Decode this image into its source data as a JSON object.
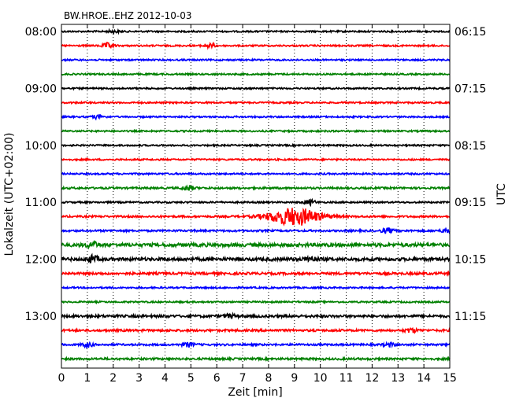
{
  "chart_data": {
    "type": "line",
    "title": "BW.HROE..EHZ 2012-10-03",
    "xlabel": "Zeit  [min]",
    "ylabel_left": "Lokalzeit (UTC+02:00)",
    "ylabel_right": "UTC",
    "xlim": [
      0,
      15
    ],
    "x_ticks": [
      "0",
      "1",
      "2",
      "3",
      "4",
      "5",
      "6",
      "7",
      "8",
      "9",
      "10",
      "11",
      "12",
      "13",
      "14",
      "15"
    ],
    "x_grid": "dotted",
    "left_ticks": [
      "08:00",
      "09:00",
      "10:00",
      "11:00",
      "12:00",
      "13:00"
    ],
    "right_ticks": [
      "06:15",
      "07:15",
      "08:15",
      "09:15",
      "10:15",
      "11:15"
    ],
    "trace_colors": [
      "#000000",
      "#ff0000",
      "#0000ff",
      "#008000"
    ],
    "traces_per_hour": 4,
    "trace_interval_min": 15,
    "series": [
      {
        "start_local": "08:00",
        "color": "#000000",
        "amplitude": 1.0,
        "events": [
          {
            "t": 2.0,
            "amp": 1.4
          }
        ]
      },
      {
        "start_local": "08:15",
        "color": "#ff0000",
        "amplitude": 1.0,
        "events": [
          {
            "t": 1.8,
            "amp": 3
          },
          {
            "t": 5.7,
            "amp": 2.5
          }
        ]
      },
      {
        "start_local": "08:30",
        "color": "#0000ff",
        "amplitude": 1.0,
        "events": []
      },
      {
        "start_local": "08:45",
        "color": "#008000",
        "amplitude": 1.0,
        "events": []
      },
      {
        "start_local": "09:00",
        "color": "#000000",
        "amplitude": 1.0,
        "events": []
      },
      {
        "start_local": "09:15",
        "color": "#ff0000",
        "amplitude": 1.0,
        "events": []
      },
      {
        "start_local": "09:30",
        "color": "#0000ff",
        "amplitude": 1.0,
        "events": [
          {
            "t": 1.4,
            "amp": 2
          }
        ]
      },
      {
        "start_local": "09:45",
        "color": "#008000",
        "amplitude": 1.0,
        "events": []
      },
      {
        "start_local": "10:00",
        "color": "#000000",
        "amplitude": 1.0,
        "events": []
      },
      {
        "start_local": "10:15",
        "color": "#ff0000",
        "amplitude": 1.0,
        "events": []
      },
      {
        "start_local": "10:30",
        "color": "#0000ff",
        "amplitude": 1.0,
        "events": []
      },
      {
        "start_local": "10:45",
        "color": "#008000",
        "amplitude": 1.2,
        "events": [
          {
            "t": 4.9,
            "amp": 3
          }
        ]
      },
      {
        "start_local": "11:00",
        "color": "#000000",
        "amplitude": 1.0,
        "events": [
          {
            "t": 9.6,
            "amp": 3
          }
        ]
      },
      {
        "start_local": "11:15",
        "color": "#ff0000",
        "amplitude": 1.2,
        "events": [
          {
            "t": 9.0,
            "amp": 11
          }
        ]
      },
      {
        "start_local": "11:30",
        "color": "#0000ff",
        "amplitude": 1.2,
        "events": [
          {
            "t": 12.6,
            "amp": 3
          },
          {
            "t": 14.9,
            "amp": 2.5
          }
        ]
      },
      {
        "start_local": "11:45",
        "color": "#008000",
        "amplitude": 2.2,
        "events": [
          {
            "t": 1.2,
            "amp": 3
          }
        ]
      },
      {
        "start_local": "12:00",
        "color": "#000000",
        "amplitude": 2.0,
        "events": [
          {
            "t": 1.2,
            "amp": 4
          },
          {
            "t": 9.6,
            "amp": 3
          }
        ]
      },
      {
        "start_local": "12:15",
        "color": "#ff0000",
        "amplitude": 1.5,
        "events": []
      },
      {
        "start_local": "12:30",
        "color": "#0000ff",
        "amplitude": 1.0,
        "events": []
      },
      {
        "start_local": "12:45",
        "color": "#008000",
        "amplitude": 1.0,
        "events": []
      },
      {
        "start_local": "13:00",
        "color": "#000000",
        "amplitude": 1.6,
        "events": [
          {
            "t": 6.5,
            "amp": 2
          }
        ]
      },
      {
        "start_local": "13:15",
        "color": "#ff0000",
        "amplitude": 1.4,
        "events": [
          {
            "t": 13.5,
            "amp": 2.5
          }
        ]
      },
      {
        "start_local": "13:30",
        "color": "#0000ff",
        "amplitude": 1.2,
        "events": [
          {
            "t": 1.0,
            "amp": 2.5
          },
          {
            "t": 4.9,
            "amp": 2.5
          },
          {
            "t": 12.7,
            "amp": 2
          }
        ]
      },
      {
        "start_local": "13:45",
        "color": "#008000",
        "amplitude": 1.3,
        "events": []
      }
    ]
  }
}
